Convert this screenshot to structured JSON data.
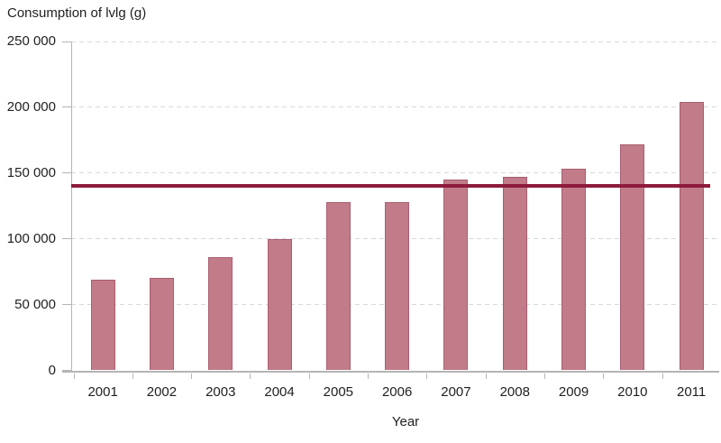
{
  "chart_data": {
    "type": "bar",
    "title": "Consumption of lvlg (g)",
    "xlabel": "Year",
    "ylabel": "",
    "categories": [
      "2001",
      "2002",
      "2003",
      "2004",
      "2005",
      "2006",
      "2007",
      "2008",
      "2009",
      "2010",
      "2011"
    ],
    "values": [
      69000,
      70000,
      86000,
      100000,
      128000,
      128000,
      145000,
      147000,
      153000,
      172000,
      204000
    ],
    "reference_line": {
      "value": 140000
    },
    "ylim": [
      0,
      250000
    ],
    "ytick_step": 50000,
    "ytick_labels": [
      "0",
      "50 000",
      "100 000",
      "150 000",
      "200 000",
      "250 000"
    ],
    "grid": "horizontal-dashed",
    "legend": "none",
    "colors": {
      "bar_fill": "#c17b89",
      "bar_border": "#aa5e71",
      "reference_line": "#8e1a3c",
      "axis": "#b5b5b5",
      "gridline": "#d9d9d9",
      "text": "#1f1f1f"
    }
  }
}
